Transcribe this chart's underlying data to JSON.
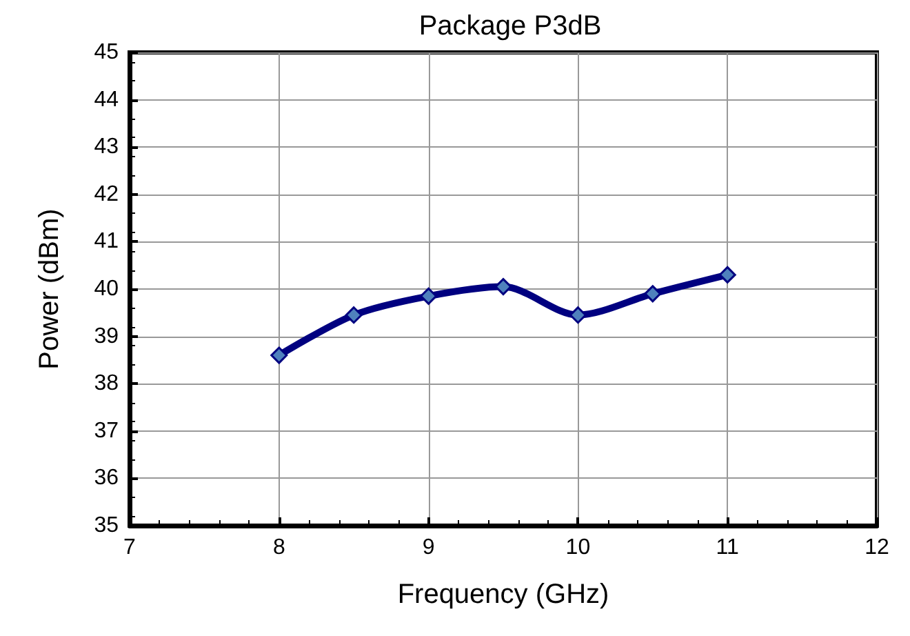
{
  "chart_data": {
    "type": "line",
    "title": "Package P3dB",
    "xlabel": "Frequency (GHz)",
    "ylabel": "Power (dBm)",
    "x": [
      8,
      8.5,
      9,
      9.5,
      10,
      10.5,
      11
    ],
    "series": [
      {
        "color": "#000080",
        "values": [
          38.6,
          39.45,
          39.85,
          40.05,
          39.45,
          39.9,
          40.3
        ]
      }
    ],
    "xlim": [
      7,
      12
    ],
    "xticks": [
      7,
      8,
      9,
      10,
      11,
      12
    ],
    "ylim": [
      35,
      45
    ],
    "yticks": [
      35,
      36,
      37,
      38,
      39,
      40,
      41,
      42,
      43,
      44,
      45
    ],
    "grid": true,
    "marker": "diamond",
    "line_style": "solid"
  }
}
